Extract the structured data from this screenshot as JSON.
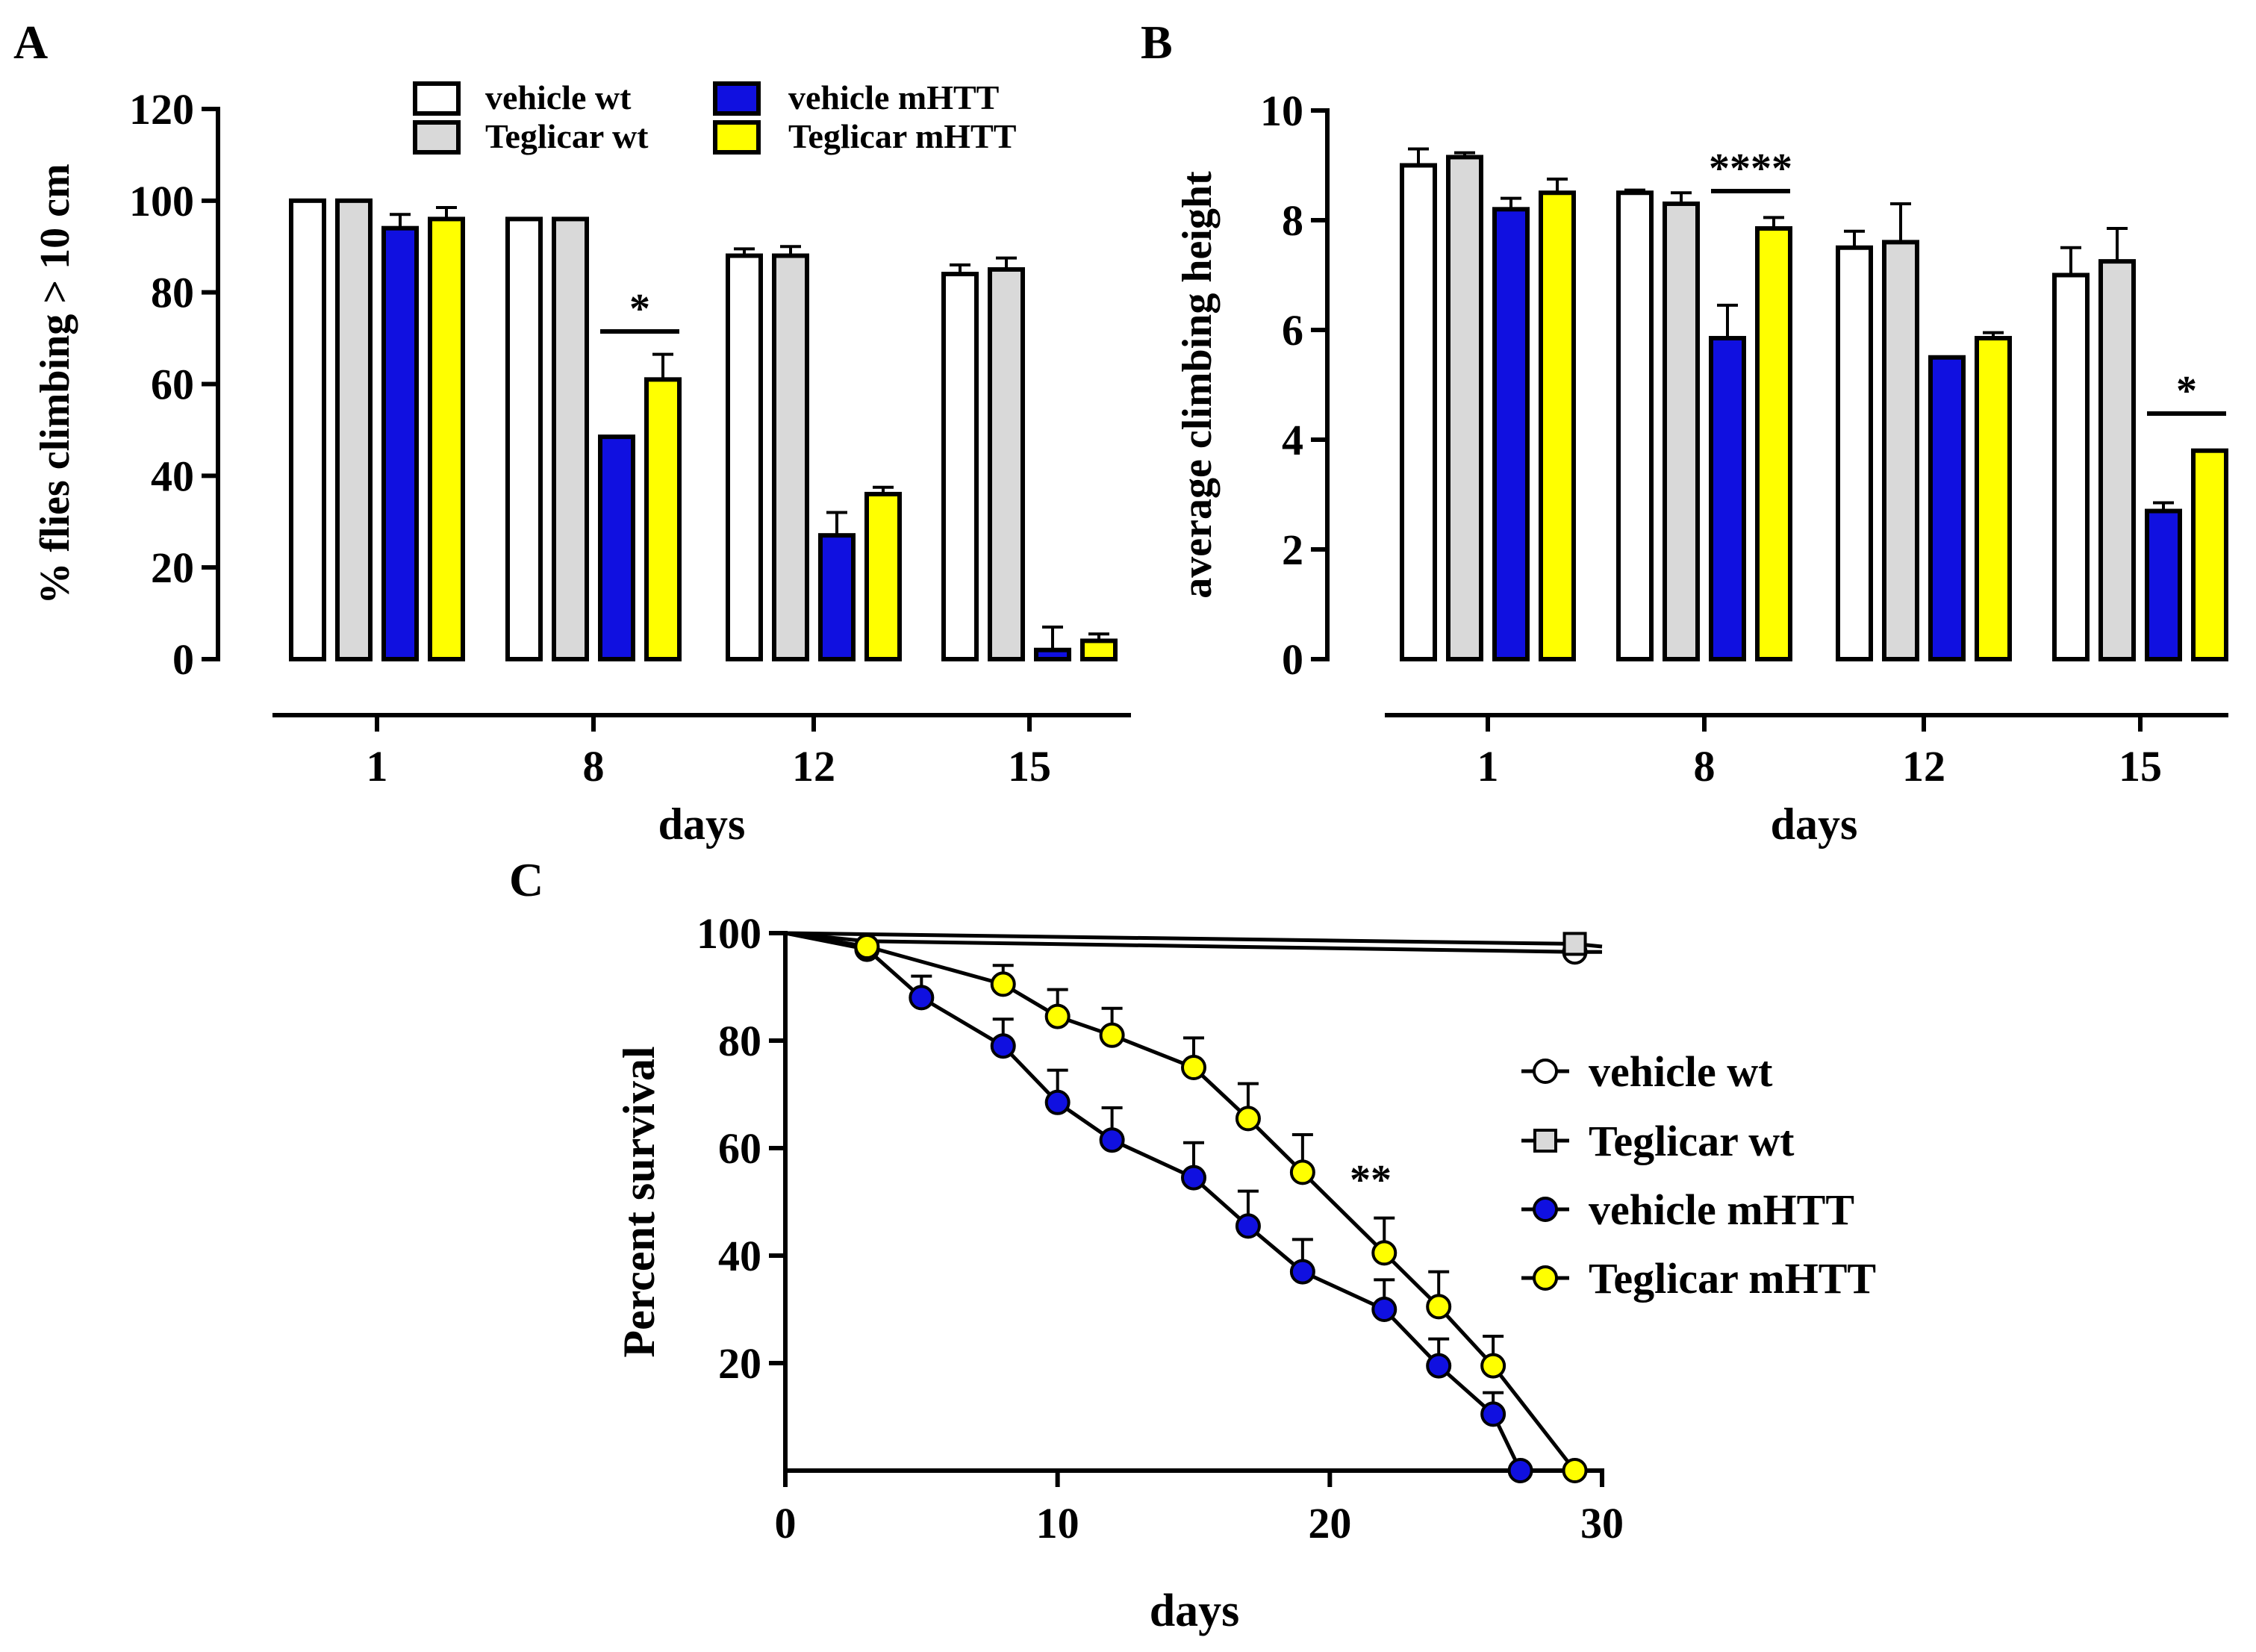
{
  "panels": [
    {
      "letter": "A"
    },
    {
      "letter": "B"
    },
    {
      "letter": "C"
    }
  ],
  "colors": {
    "vehicle_wt": "#ffffff",
    "teglicar_wt": "#d9d9d9",
    "vehicle_mhtt": "#1010e0",
    "teglicar_mhtt": "#ffff00",
    "axis": "#000000"
  },
  "chart_data": [
    {
      "panel": "A",
      "type": "bar",
      "ylabel": "%  flies climbing > 10 cm",
      "xlabel": "days",
      "ylim": [
        0,
        120
      ],
      "yticks": [
        0,
        20,
        40,
        60,
        80,
        100,
        120
      ],
      "categories": [
        "1",
        "8",
        "12",
        "15"
      ],
      "legend": {
        "placement": "top",
        "columns": 2
      },
      "series": [
        {
          "name": "vehicle  wt",
          "color": "#ffffff",
          "values": [
            100,
            96,
            88,
            84
          ],
          "errors": [
            0,
            0,
            1.5,
            2
          ]
        },
        {
          "name": "Teglicar wt",
          "color": "#d9d9d9",
          "values": [
            100,
            96,
            88,
            85
          ],
          "errors": [
            0,
            0,
            2,
            2.5
          ]
        },
        {
          "name": "vehicle   mHTT",
          "color": "#1010e0",
          "values": [
            94,
            48.5,
            27,
            2
          ],
          "errors": [
            3,
            0,
            5,
            5
          ]
        },
        {
          "name": "Teglicar mHTT",
          "color": "#ffff00",
          "values": [
            96,
            61,
            36,
            4
          ],
          "errors": [
            2.5,
            5.5,
            1.5,
            1.5
          ]
        }
      ],
      "significance": [
        {
          "category": "8",
          "label": "*"
        }
      ]
    },
    {
      "panel": "B",
      "type": "bar",
      "ylabel": "average climbing height",
      "xlabel": "days",
      "ylim": [
        0,
        10
      ],
      "yticks": [
        0,
        2,
        4,
        6,
        8,
        10
      ],
      "categories": [
        "1",
        "8",
        "12",
        "15"
      ],
      "series": [
        {
          "name": "vehicle  wt",
          "color": "#ffffff",
          "values": [
            9.0,
            8.5,
            7.5,
            7.0
          ],
          "errors": [
            0.3,
            0.05,
            0.3,
            0.5
          ]
        },
        {
          "name": "Teglicar wt",
          "color": "#d9d9d9",
          "values": [
            9.15,
            8.3,
            7.6,
            7.25
          ],
          "errors": [
            0.08,
            0.2,
            0.7,
            0.6
          ]
        },
        {
          "name": "vehicle   mHTT",
          "color": "#1010e0",
          "values": [
            8.2,
            5.85,
            5.5,
            2.7
          ],
          "errors": [
            0.2,
            0.6,
            0,
            0.15
          ]
        },
        {
          "name": "Teglicar mHTT",
          "color": "#ffff00",
          "values": [
            8.5,
            7.85,
            5.85,
            3.8
          ],
          "errors": [
            0.25,
            0.2,
            0.1,
            0
          ]
        }
      ],
      "significance": [
        {
          "category": "8",
          "label": "****"
        },
        {
          "category": "15",
          "label": "*"
        }
      ]
    },
    {
      "panel": "C",
      "type": "line",
      "ylabel": "Percent survival",
      "xlabel": "days",
      "xlim": [
        0,
        30
      ],
      "ylim": [
        0,
        100
      ],
      "xticks": [
        0,
        10,
        20,
        30
      ],
      "yticks": [
        20,
        40,
        60,
        80,
        100
      ],
      "legend": {
        "placement": "right"
      },
      "annotations": [
        {
          "x": 21.5,
          "y": 54,
          "label": "**"
        }
      ],
      "series": [
        {
          "name": "vehicle   wt",
          "marker": "circle",
          "color": "#ffffff",
          "x": [
            0,
            3,
            29,
            30
          ],
          "y": [
            100,
            98.5,
            96.5,
            96.5
          ],
          "markers_at": [
            29
          ],
          "errors": []
        },
        {
          "name": "Teglicar wt",
          "marker": "square",
          "color": "#d9d9d9",
          "x": [
            0,
            29,
            30
          ],
          "y": [
            100,
            98,
            97.5
          ],
          "markers_at": [
            29
          ],
          "errors": []
        },
        {
          "name": "vehicle   mHTT",
          "marker": "circle",
          "color": "#1010e0",
          "x": [
            0,
            3,
            5,
            8,
            10,
            12,
            15,
            17,
            19,
            22,
            24,
            26,
            27
          ],
          "y": [
            100,
            97,
            88,
            79,
            68.5,
            61.5,
            54.5,
            45.5,
            37,
            30,
            19.5,
            10.5,
            0
          ],
          "markers_at": [
            3,
            5,
            8,
            10,
            12,
            15,
            17,
            19,
            22,
            24,
            26,
            27
          ],
          "errors": [
            0,
            0,
            4,
            5,
            6,
            6,
            6.5,
            6.5,
            6,
            5.5,
            5,
            4,
            0
          ]
        },
        {
          "name": "Teglicar mHTT",
          "marker": "circle",
          "color": "#ffff00",
          "x": [
            0,
            3,
            8,
            10,
            12,
            15,
            17,
            19,
            22,
            24,
            26,
            29
          ],
          "y": [
            100,
            97.5,
            90.5,
            84.5,
            81,
            75,
            65.5,
            55.5,
            40.5,
            30.5,
            19.5,
            0
          ],
          "markers_at": [
            3,
            8,
            10,
            12,
            15,
            17,
            19,
            22,
            24,
            26,
            29
          ],
          "errors": [
            0,
            0,
            3.5,
            5,
            5,
            5.5,
            6.5,
            7,
            6.5,
            6.5,
            5.5,
            0
          ]
        }
      ]
    }
  ]
}
